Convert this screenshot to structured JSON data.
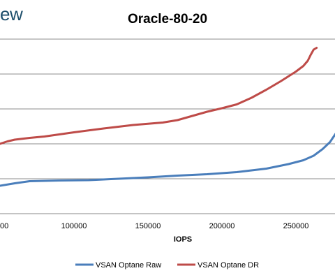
{
  "brand": {
    "text": "ew"
  },
  "chart_data": {
    "type": "line",
    "title": "Oracle-80-20",
    "xlabel": "IOPS",
    "ylabel": "",
    "xlim": [
      50000,
      280000
    ],
    "ylim": [
      0,
      5
    ],
    "x_ticks": [
      100000,
      150000,
      200000,
      250000
    ],
    "x_tick_labels": [
      "100000",
      "150000",
      "200000",
      "250000"
    ],
    "partial_x_tick_label": "00",
    "grid": "horizontal",
    "legend": "bottom",
    "series": [
      {
        "name": "VSAN Optane Raw",
        "color": "#4a7ebb",
        "x": [
          50000,
          60000,
          70000,
          90000,
          110000,
          130000,
          150000,
          170000,
          190000,
          210000,
          230000,
          245000,
          255000,
          262000,
          268000,
          273000,
          277000,
          280000
        ],
        "y": [
          0.8,
          0.87,
          0.93,
          0.95,
          0.96,
          1.0,
          1.04,
          1.09,
          1.13,
          1.19,
          1.29,
          1.42,
          1.53,
          1.66,
          1.85,
          2.05,
          2.3,
          2.5
        ]
      },
      {
        "name": "VSAN Optane DR",
        "color": "#be4b48",
        "x": [
          50000,
          55000,
          60000,
          70000,
          80000,
          100000,
          120000,
          140000,
          160000,
          170000,
          180000,
          190000,
          200000,
          210000,
          220000,
          230000,
          240000,
          250000,
          255000,
          258000,
          260000,
          262000,
          264000
        ],
        "y": [
          2.0,
          2.07,
          2.12,
          2.17,
          2.21,
          2.33,
          2.44,
          2.54,
          2.61,
          2.68,
          2.8,
          2.92,
          3.02,
          3.13,
          3.32,
          3.55,
          3.8,
          4.07,
          4.23,
          4.38,
          4.55,
          4.7,
          4.75
        ]
      }
    ]
  }
}
